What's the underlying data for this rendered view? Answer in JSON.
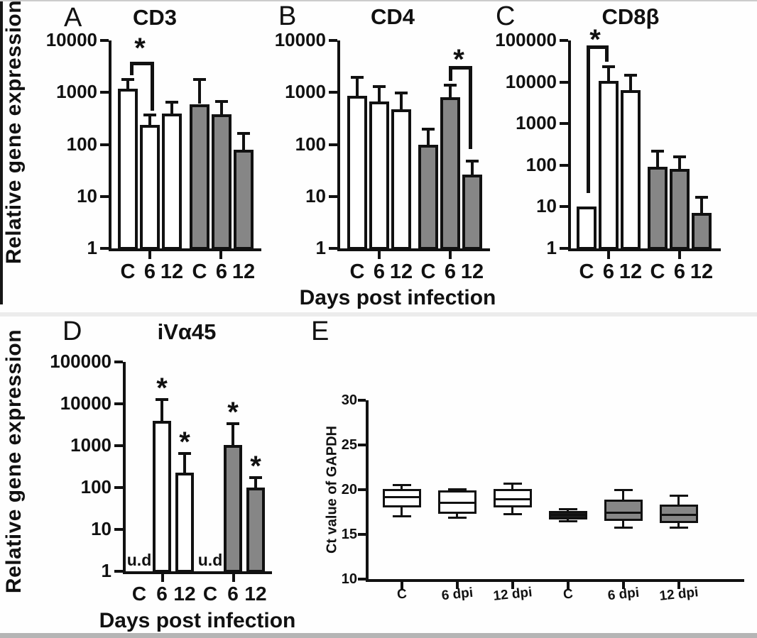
{
  "figure": {
    "ylabel": "Relative gene expression",
    "xlabel": "Days post infection"
  },
  "colors": {
    "ink": "#111111",
    "bar_white": "#ffffff",
    "bar_gray": "#868686",
    "box_black": "#1c1c1c",
    "bottom_strip": "#b5b5b5",
    "left_strip": "#161616",
    "top_line": "#cccccc",
    "row_seam": "#ececec"
  },
  "chart_data": [
    {
      "id": "A",
      "letter": "A",
      "type": "bar",
      "title": "CD3",
      "yscale": "log",
      "ylim": [
        1,
        10000
      ],
      "yticks": [
        10000,
        1000,
        100,
        10,
        1
      ],
      "categories": [
        "C",
        "6",
        "12",
        "C",
        "6",
        "12"
      ],
      "values": [
        1170,
        235,
        390,
        600,
        385,
        80
      ],
      "errors_upper": [
        1770,
        365,
        645,
        1770,
        660,
        165
      ],
      "fills": [
        "white",
        "white",
        "white",
        "gray",
        "gray",
        "gray"
      ],
      "annotations": [
        null,
        null,
        null,
        null,
        null,
        null
      ],
      "significance": {
        "between": [
          "C",
          "6"
        ],
        "label": "*"
      }
    },
    {
      "id": "B",
      "letter": "B",
      "type": "bar",
      "title": "CD4",
      "yscale": "log",
      "ylim": [
        1,
        10000
      ],
      "yticks": [
        10000,
        1000,
        100,
        10,
        1
      ],
      "categories": [
        "C",
        "6",
        "12",
        "C",
        "6",
        "12"
      ],
      "values": [
        850,
        660,
        480,
        98,
        800,
        26
      ],
      "errors_upper": [
        1950,
        1290,
        975,
        195,
        1380,
        48
      ],
      "fills": [
        "white",
        "white",
        "white",
        "gray",
        "gray",
        "gray"
      ],
      "annotations": [
        null,
        null,
        null,
        null,
        null,
        null
      ],
      "significance": {
        "between": [
          "6",
          "12"
        ],
        "label": "*"
      }
    },
    {
      "id": "C",
      "letter": "C",
      "type": "bar",
      "title": "CD8β",
      "yscale": "log",
      "ylim": [
        1,
        100000
      ],
      "yticks": [
        100000,
        10000,
        1000,
        100,
        10,
        1
      ],
      "categories": [
        "C",
        "6",
        "12",
        "C",
        "6",
        "12"
      ],
      "values": [
        10,
        10500,
        6300,
        92,
        82,
        7
      ],
      "errors_upper": [
        null,
        23000,
        14300,
        220,
        160,
        17
      ],
      "fills": [
        "white",
        "white",
        "white",
        "gray",
        "gray",
        "gray"
      ],
      "annotations": [
        null,
        null,
        null,
        null,
        null,
        null
      ],
      "significance": {
        "between": [
          "C",
          "6"
        ],
        "label": "*"
      }
    },
    {
      "id": "D",
      "letter": "D",
      "type": "bar",
      "title": "iVα45",
      "yscale": "log",
      "ylim": [
        1,
        100000
      ],
      "yticks": [
        100000,
        10000,
        1000,
        100,
        10,
        1
      ],
      "categories": [
        "C",
        "6",
        "12",
        "C",
        "6",
        "12"
      ],
      "values": [
        null,
        3900,
        230,
        null,
        1030,
        100
      ],
      "errors_upper": [
        null,
        12600,
        650,
        null,
        3350,
        173
      ],
      "fills": [
        "white",
        "white",
        "white",
        "gray",
        "gray",
        "gray"
      ],
      "annotations": [
        "u.d",
        "*",
        "*",
        "u.d",
        "*",
        "*"
      ],
      "significance": null
    },
    {
      "id": "E",
      "letter": "E",
      "type": "box",
      "ylabel": "Ct value of GAPDH",
      "ylim": [
        10,
        30
      ],
      "yticks": [
        30,
        25,
        20,
        15,
        10
      ],
      "categories": [
        "C",
        "6 dpi",
        "12 dpi",
        "C",
        "6 dpi",
        "12 dpi"
      ],
      "boxes": [
        {
          "category": "C",
          "whisker_low": 17.1,
          "q1": 18.0,
          "median": 19.2,
          "q3": 20.1,
          "whisker_high": 20.5,
          "fill": "white"
        },
        {
          "category": "6 dpi",
          "whisker_low": 16.9,
          "q1": 17.3,
          "median": 18.6,
          "q3": 19.9,
          "whisker_high": 20.0,
          "fill": "white"
        },
        {
          "category": "12 dpi",
          "whisker_low": 17.3,
          "q1": 18.0,
          "median": 19.0,
          "q3": 20.1,
          "whisker_high": 20.6,
          "fill": "white"
        },
        {
          "category": "C",
          "whisker_low": 16.5,
          "q1": 16.7,
          "median": 17.2,
          "q3": 17.6,
          "whisker_high": 17.8,
          "fill": "black"
        },
        {
          "category": "6 dpi",
          "whisker_low": 15.8,
          "q1": 16.5,
          "median": 17.5,
          "q3": 18.9,
          "whisker_high": 19.9,
          "fill": "gray"
        },
        {
          "category": "12 dpi",
          "whisker_low": 15.8,
          "q1": 16.3,
          "median": 17.2,
          "q3": 18.3,
          "whisker_high": 19.3,
          "fill": "gray"
        }
      ]
    }
  ]
}
